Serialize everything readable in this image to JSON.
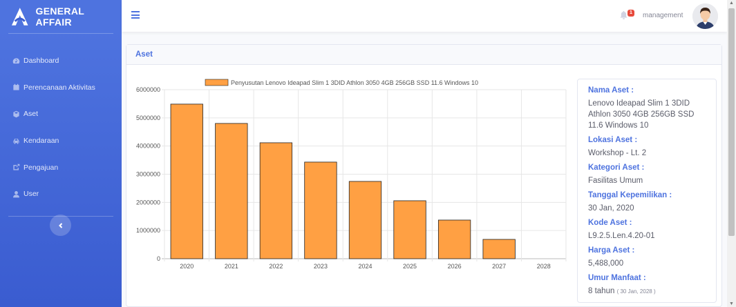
{
  "app": {
    "brand": "GENERAL AFFAIR"
  },
  "sidebar": {
    "items": [
      {
        "label": "Dashboard",
        "icon": "tachometer-icon"
      },
      {
        "label": "Perencanaan Aktivitas",
        "icon": "calendar-icon"
      },
      {
        "label": "Aset",
        "icon": "cube-icon"
      },
      {
        "label": "Kendaraan",
        "icon": "car-icon"
      },
      {
        "label": "Pengajuan",
        "icon": "external-edit-icon"
      },
      {
        "label": "User",
        "icon": "user-icon"
      }
    ],
    "toggle_icon": "chevron-left-icon"
  },
  "topbar": {
    "notification_count": "1",
    "username": "management"
  },
  "card": {
    "title": "Aset"
  },
  "chart_data": {
    "type": "bar",
    "legend": "Penyusutan Lenovo Ideapad Slim 1 3DID Athlon 3050 4GB 256GB SSD 11.6 Windows 10",
    "categories": [
      "2020",
      "2021",
      "2022",
      "2023",
      "2024",
      "2025",
      "2026",
      "2027",
      "2028"
    ],
    "values": [
      5488000,
      4802000,
      4116000,
      3430000,
      2744000,
      2058000,
      1372000,
      686000,
      0
    ],
    "ylim": [
      0,
      6000000
    ],
    "yticks": [
      "0",
      "1000000",
      "2000000",
      "3000000",
      "4000000",
      "5000000",
      "6000000"
    ],
    "grid": true,
    "legend_position": "top",
    "colors": {
      "bar": "#ffa043",
      "bar_border": "#222222"
    }
  },
  "info": {
    "nama_label": "Nama Aset :",
    "nama_value": "Lenovo Ideapad Slim 1 3DID Athlon 3050 4GB 256GB SSD 11.6 Windows 10",
    "lokasi_label": "Lokasi Aset :",
    "lokasi_value": "Workshop - Lt. 2",
    "kategori_label": "Kategori Aset :",
    "kategori_value": "Fasilitas Umum",
    "tanggal_label": "Tanggal Kepemilikan :",
    "tanggal_value": "30 Jan, 2020",
    "kode_label": "Kode Aset :",
    "kode_value": "L9.2.5.Len.4.20-01",
    "harga_label": "Harga Aset :",
    "harga_value": "5,488,000",
    "umur_label": "Umur Manfaat :",
    "umur_value": "8 tahun",
    "umur_sub": "( 30 Jan, 2028 )"
  }
}
